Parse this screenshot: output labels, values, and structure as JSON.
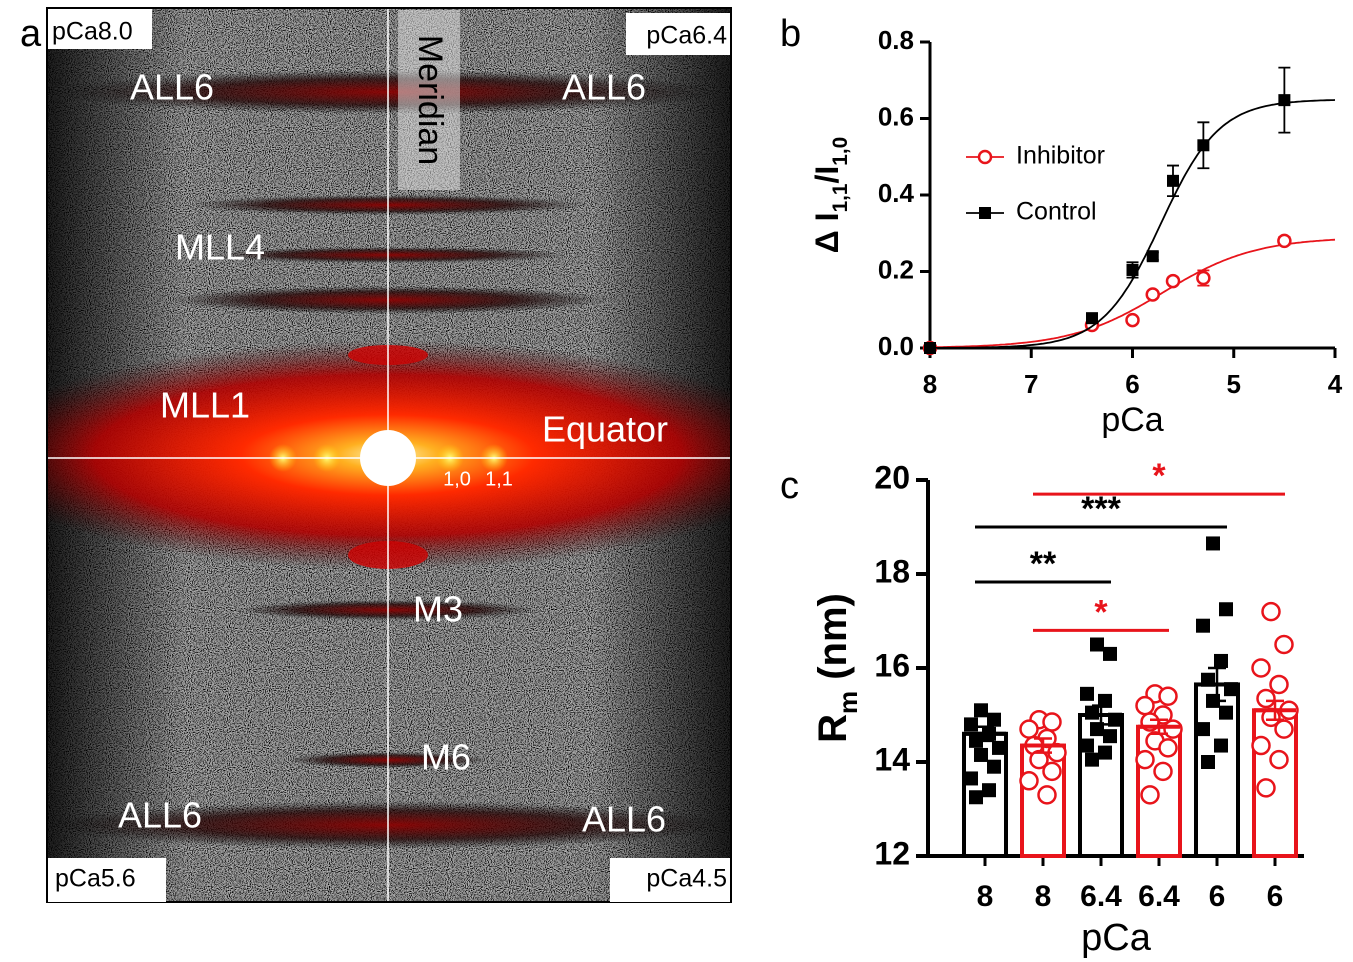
{
  "image_panel": {
    "panel_label": "a",
    "corner_labels": [
      "pCa8.0",
      "pCa6.4",
      "pCa5.6",
      "pCa4.5"
    ],
    "meridian": "Meridian",
    "equator": "Equator",
    "all6": [
      "ALL6",
      "ALL6",
      "ALL6",
      "ALL6"
    ],
    "mll4": "MLL4",
    "mll1": "MLL1",
    "m3": "M3",
    "m6": "M6",
    "r10": "1,0",
    "r11": "1,1"
  },
  "chart_data": [
    {
      "type": "line",
      "panel_label": "b",
      "xlabel": "pCa",
      "ylabel": [
        "Δ I",
        "1,1",
        "/I",
        "1,0"
      ],
      "x": [
        8,
        6.4,
        6,
        5.8,
        5.6,
        5.3,
        4.5
      ],
      "xlim": [
        8,
        4
      ],
      "xticks": [
        8,
        7,
        6,
        5,
        4
      ],
      "ylim": [
        0,
        0.8
      ],
      "yticks": [
        {
          "value": 0,
          "label": "0.0"
        },
        0.2,
        0.4,
        0.6,
        0.8
      ],
      "legend": "upper-left",
      "series": [
        {
          "name": "Inhibitor",
          "color": "#e8141b",
          "marker": "circle",
          "values": [
            0,
            0.06,
            0.073,
            0.14,
            0.175,
            0.183,
            0.28
          ],
          "errors": [
            0,
            0,
            0,
            0,
            0,
            0.02,
            0.01
          ],
          "fit": {
            "top": 0.29,
            "pCa50": 5.7,
            "hill": 0.95
          }
        },
        {
          "name": "Control",
          "color": "#000000",
          "marker": "square",
          "values": [
            0,
            0.078,
            0.204,
            0.24,
            0.437,
            0.53,
            0.648
          ],
          "errors": [
            0,
            0.01,
            0.02,
            0.01,
            0.04,
            0.06,
            0.085
          ],
          "fit": {
            "top": 0.65,
            "pCa50": 5.72,
            "hill": 1.5
          }
        }
      ]
    },
    {
      "type": "bar",
      "panel_label": "c",
      "xlabel": "pCa",
      "ylabel": [
        "R",
        "m",
        " (nm)"
      ],
      "categories": [
        "8",
        "8",
        "6.4",
        "6.4",
        "6",
        "6"
      ],
      "colors": [
        "#000000",
        "#e8141b",
        "#000000",
        "#e8141b",
        "#000000",
        "#e8141b"
      ],
      "markers": [
        "square",
        "circle",
        "square",
        "circle",
        "square",
        "circle"
      ],
      "values": [
        14.6,
        14.35,
        15.0,
        14.75,
        15.65,
        15.1
      ],
      "errors": [
        0.15,
        0.15,
        0.2,
        0.15,
        0.35,
        0.2
      ],
      "points": [
        [
          15.1,
          14.9,
          14.8,
          14.6,
          14.45,
          14.3,
          14.15,
          13.9,
          13.65,
          13.4,
          13.25
        ],
        [
          14.9,
          14.85,
          14.7,
          14.5,
          14.35,
          14.2,
          14.05,
          13.8,
          13.6,
          13.3
        ],
        [
          16.5,
          16.3,
          15.45,
          15.3,
          15.05,
          14.9,
          14.7,
          14.55,
          14.35,
          14.2,
          14.05
        ],
        [
          15.45,
          15.4,
          15.2,
          15.0,
          14.85,
          14.7,
          14.45,
          14.3,
          14.05,
          13.8,
          13.3
        ],
        [
          18.65,
          17.25,
          16.9,
          16.15,
          15.75,
          15.55,
          15.3,
          15.05,
          14.7,
          14.35,
          14.0
        ],
        [
          17.2,
          16.5,
          16.0,
          15.65,
          15.35,
          15.1,
          14.95,
          14.7,
          14.35,
          14.05,
          13.45
        ]
      ],
      "ylim": [
        12,
        20
      ],
      "yticks": [
        12,
        14,
        16,
        18,
        20
      ],
      "significance": [
        {
          "from": 1,
          "to": 5,
          "y": 19.7,
          "label": "*",
          "color": "#e8141b"
        },
        {
          "from": 0,
          "to": 4,
          "y": 19.0,
          "label": "***",
          "color": "#000000"
        },
        {
          "from": 0,
          "to": 2,
          "y": 17.83,
          "label": "**",
          "color": "#000000"
        },
        {
          "from": 1,
          "to": 3,
          "y": 16.8,
          "label": "*",
          "color": "#e8141b"
        }
      ]
    }
  ]
}
